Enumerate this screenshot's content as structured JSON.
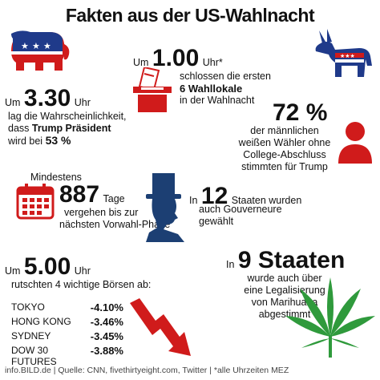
{
  "title": "Fakten aus der US-Wahlnacht",
  "colors": {
    "red": "#d01b1b",
    "blue": "#1f3a8a",
    "green": "#2f9a3c",
    "navy": "#1c3f73"
  },
  "fact_polls": {
    "prefix": "Um",
    "value": "1.00",
    "unit": "Uhr*",
    "line1": "schlossen die ersten",
    "line2_bold": "6 Wahllokale",
    "line3": "in der Wahlnacht"
  },
  "fact_probability": {
    "prefix": "Um",
    "value": "3.30",
    "unit": "Uhr",
    "line1": "lag die Wahrscheinlichkeit,",
    "line2_pre": "dass",
    "line2_bold": "Trump Präsident",
    "line3_pre": "wird bei",
    "line3_bold": "53 %"
  },
  "fact_voters": {
    "value": "72 %",
    "line1": "der männlichen",
    "line2": "weißen Wähler ohne",
    "line3": "College-Abschluss",
    "line4": "stimmten für Trump"
  },
  "fact_days": {
    "pre": "Mindestens",
    "value": "887",
    "unit": "Tage",
    "line1": "vergehen bis zur",
    "line2": "nächsten Vorwahl-Phase"
  },
  "fact_governors": {
    "prefix": "In",
    "value": "12",
    "line1": "Staaten wurden",
    "line2": "auch Gouverneure",
    "line3": "gewählt"
  },
  "fact_markets": {
    "prefix": "Um",
    "value": "5.00",
    "unit": "Uhr",
    "line1": "rutschten 4 wichtige Börsen ab:",
    "rows": [
      {
        "name": "TOKYO",
        "value": "-4.10%"
      },
      {
        "name": "HONG KONG",
        "value": "-3.46%"
      },
      {
        "name": "SYDNEY",
        "value": "-3.45%"
      },
      {
        "name": "DOW 30 FUTURES",
        "value": "-3.88%"
      }
    ]
  },
  "fact_marijuana": {
    "prefix": "In",
    "value": "9 Staaten",
    "line1": "wurde auch über",
    "line2": "eine Legalisierung",
    "line3": "von Marihuana",
    "line4": "abgestimmt"
  },
  "footer": "info.BILD.de | Quelle: CNN, fivethirtyeight.com, Twitter | *alle Uhrzeiten MEZ",
  "icons": [
    "elephant-icon",
    "donkey-icon",
    "ballot-box-icon",
    "person-icon",
    "calendar-icon",
    "top-hat-silhouette-icon",
    "falling-arrow-icon",
    "cannabis-leaf-icon"
  ]
}
